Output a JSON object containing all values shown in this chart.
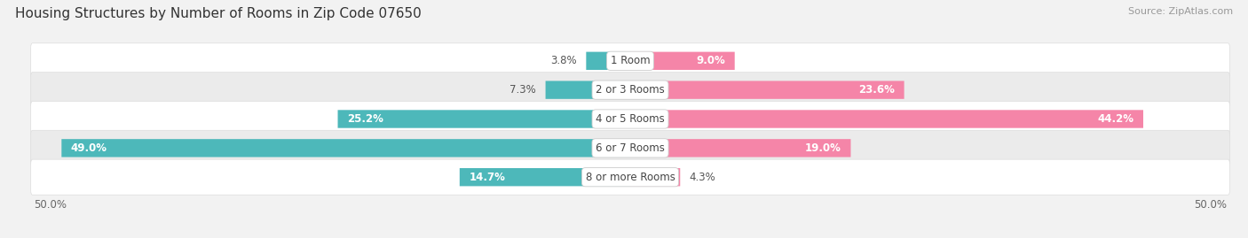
{
  "title": "Housing Structures by Number of Rooms in Zip Code 07650",
  "source": "Source: ZipAtlas.com",
  "categories": [
    "1 Room",
    "2 or 3 Rooms",
    "4 or 5 Rooms",
    "6 or 7 Rooms",
    "8 or more Rooms"
  ],
  "owner_values": [
    3.8,
    7.3,
    25.2,
    49.0,
    14.7
  ],
  "renter_values": [
    9.0,
    23.6,
    44.2,
    19.0,
    4.3
  ],
  "owner_color": "#4db8ba",
  "renter_color": "#f585a8",
  "bar_height": 0.62,
  "xlim": [
    -50,
    50
  ],
  "background_color": "#f2f2f2",
  "row_bg_light": "#ffffff",
  "row_bg_dark": "#ebebeb",
  "title_fontsize": 11,
  "source_fontsize": 8,
  "label_fontsize": 8.5,
  "category_fontsize": 8.5,
  "value_label_inside_color": "#ffffff",
  "value_label_outside_color": "#555555"
}
